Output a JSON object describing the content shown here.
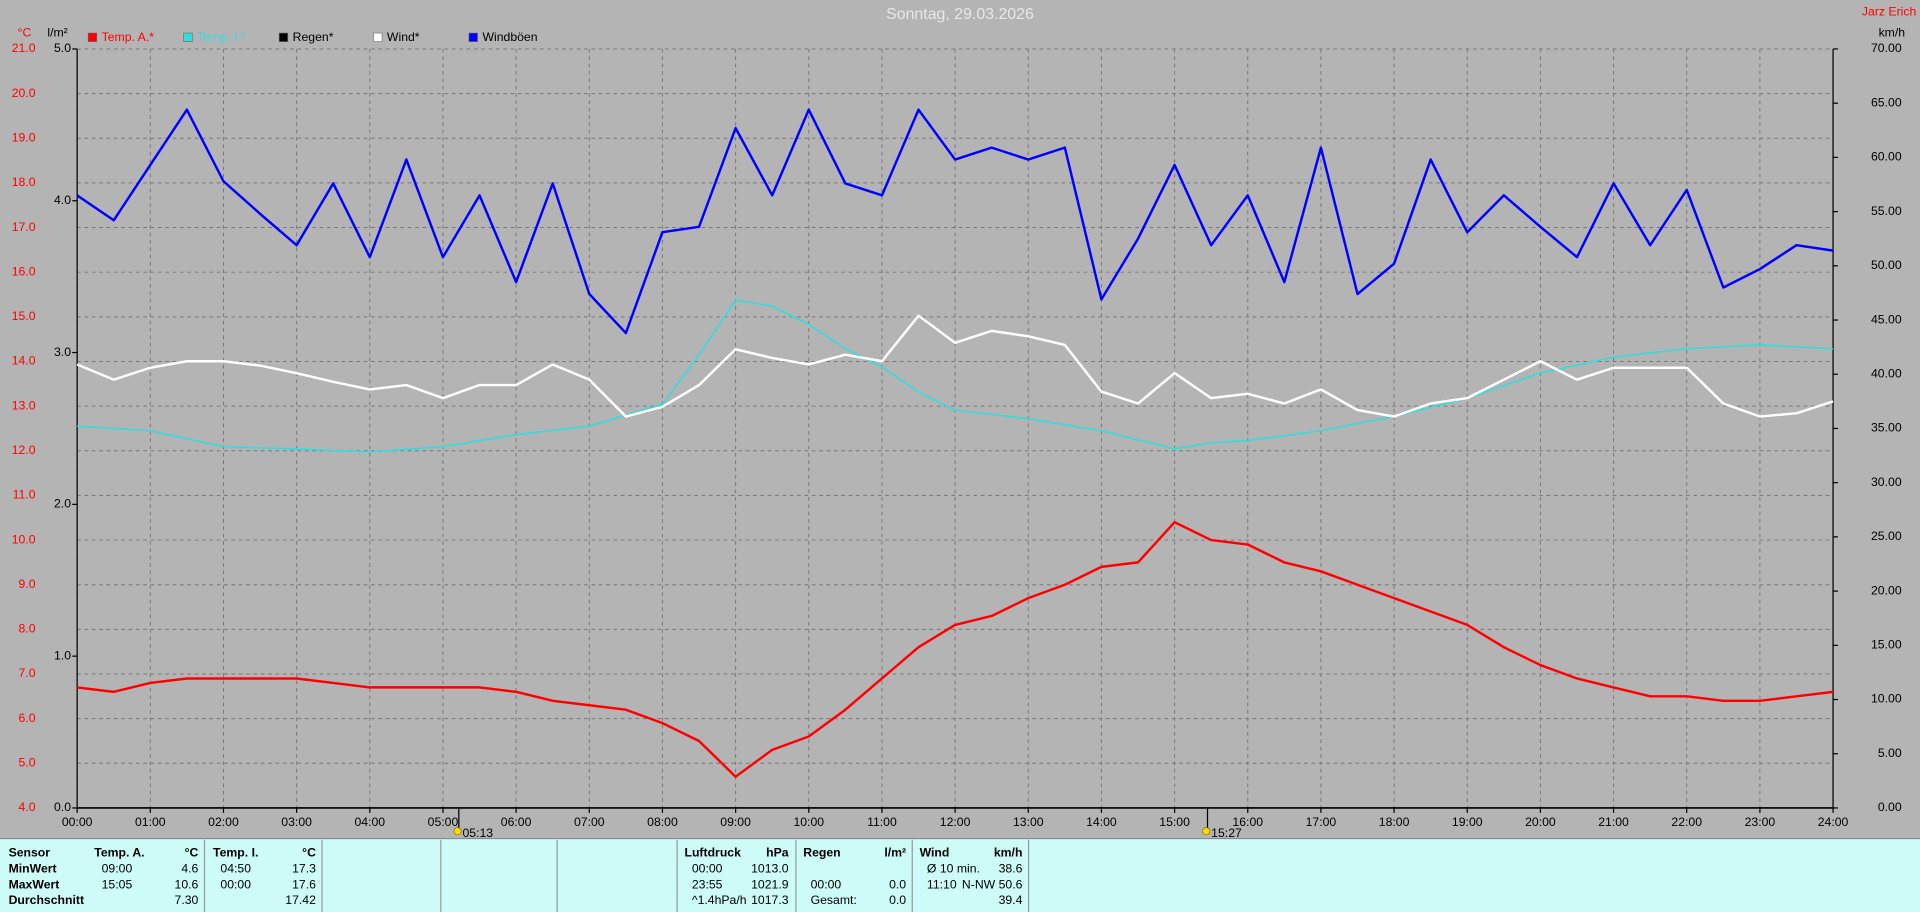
{
  "chart_data": {
    "type": "line",
    "title": "Sonntag, 29.03.2026",
    "author": "Jarz Erich",
    "y_unit": "°C",
    "y2_unit": "l/m²",
    "y3_unit": "km/h",
    "xlim": [
      0,
      24
    ],
    "xticks": [
      {
        "value": 0,
        "label": "00:00"
      },
      {
        "value": 1,
        "label": "01:00"
      },
      {
        "value": 2,
        "label": "02:00"
      },
      {
        "value": 3,
        "label": "03:00"
      },
      {
        "value": 4,
        "label": "04:00"
      },
      {
        "value": 5,
        "label": "05:00"
      },
      {
        "value": 6,
        "label": "06:00"
      },
      {
        "value": 7,
        "label": "07:00"
      },
      {
        "value": 8,
        "label": "08:00"
      },
      {
        "value": 9,
        "label": "09:00"
      },
      {
        "value": 10,
        "label": "10:00"
      },
      {
        "value": 11,
        "label": "11:00"
      },
      {
        "value": 12,
        "label": "12:00"
      },
      {
        "value": 13,
        "label": "13:00"
      },
      {
        "value": 14,
        "label": "14:00"
      },
      {
        "value": 15,
        "label": "15:00"
      },
      {
        "value": 16,
        "label": "16:00"
      },
      {
        "value": 17,
        "label": "17:00"
      },
      {
        "value": 18,
        "label": "18:00"
      },
      {
        "value": 19,
        "label": "19:00"
      },
      {
        "value": 20,
        "label": "20:00"
      },
      {
        "value": 21,
        "label": "21:00"
      },
      {
        "value": 22,
        "label": "22:00"
      },
      {
        "value": 23,
        "label": "23:00"
      },
      {
        "value": 24,
        "label": "24:00"
      }
    ],
    "ylim": [
      4,
      21
    ],
    "yticks": [
      {
        "value": 4,
        "label": "4.0"
      },
      {
        "value": 5,
        "label": "5.0"
      },
      {
        "value": 6,
        "label": "6.0"
      },
      {
        "value": 7,
        "label": "7.0"
      },
      {
        "value": 8,
        "label": "8.0"
      },
      {
        "value": 9,
        "label": "9.0"
      },
      {
        "value": 10,
        "label": "10.0"
      },
      {
        "value": 11,
        "label": "11.0"
      },
      {
        "value": 12,
        "label": "12.0"
      },
      {
        "value": 13,
        "label": "13.0"
      },
      {
        "value": 14,
        "label": "14.0"
      },
      {
        "value": 15,
        "label": "15.0"
      },
      {
        "value": 16,
        "label": "16.0"
      },
      {
        "value": 17,
        "label": "17.0"
      },
      {
        "value": 18,
        "label": "18.0"
      },
      {
        "value": 19,
        "label": "19.0"
      },
      {
        "value": 20,
        "label": "20.0"
      },
      {
        "value": 21,
        "label": "21.0"
      }
    ],
    "y2lim": [
      0,
      5
    ],
    "y2ticks": [
      {
        "value": 0,
        "label": "0.0"
      },
      {
        "value": 1,
        "label": "1.0"
      },
      {
        "value": 2,
        "label": "2.0"
      },
      {
        "value": 3,
        "label": "3.0"
      },
      {
        "value": 4,
        "label": "4.0"
      },
      {
        "value": 5,
        "label": "5.0"
      }
    ],
    "y3lim": [
      0,
      70
    ],
    "y3ticks": [
      {
        "value": 0,
        "label": "0.00"
      },
      {
        "value": 5,
        "label": "5.00"
      },
      {
        "value": 10,
        "label": "10.00"
      },
      {
        "value": 15,
        "label": "15.00"
      },
      {
        "value": 20,
        "label": "20.00"
      },
      {
        "value": 25,
        "label": "25.00"
      },
      {
        "value": 30,
        "label": "30.00"
      },
      {
        "value": 35,
        "label": "35.00"
      },
      {
        "value": 40,
        "label": "40.00"
      },
      {
        "value": 45,
        "label": "45.00"
      },
      {
        "value": 50,
        "label": "50.00"
      },
      {
        "value": 55,
        "label": "55.00"
      },
      {
        "value": 60,
        "label": "60.00"
      },
      {
        "value": 65,
        "label": "65.00"
      },
      {
        "value": 70,
        "label": "70.00"
      }
    ],
    "y4lim": [
      0,
      100
    ],
    "grid": true,
    "x": [
      0,
      0.5,
      1,
      1.5,
      2,
      2.5,
      3,
      3.5,
      4,
      4.5,
      5,
      5.5,
      6,
      6.5,
      7,
      7.5,
      8,
      8.5,
      9,
      9.5,
      10,
      10.5,
      11,
      11.5,
      12,
      12.5,
      13,
      13.5,
      14,
      14.5,
      15,
      15.5,
      16,
      16.5,
      17,
      17.5,
      18,
      18.5,
      19,
      19.5,
      20,
      20.5,
      21,
      21.5,
      22,
      22.5,
      23,
      23.5,
      24
    ],
    "series": [
      {
        "name": "Temp. A.*",
        "color": "#ff0000",
        "label_color": "#ff0000",
        "values": [
          6.7,
          6.6,
          6.8,
          6.9,
          6.9,
          6.9,
          6.9,
          6.8,
          6.7,
          6.7,
          6.7,
          6.7,
          6.6,
          6.4,
          6.3,
          6.2,
          5.9,
          5.5,
          4.7,
          5.3,
          5.6,
          6.2,
          6.9,
          7.6,
          8.1,
          8.3,
          8.7,
          9.0,
          9.4,
          9.5,
          10.4,
          10.0,
          9.9,
          9.5,
          9.3,
          9.0,
          8.7,
          8.4,
          8.1,
          7.6,
          7.2,
          6.9,
          6.7,
          6.5,
          6.5,
          6.4,
          6.4,
          6.5,
          6.6
        ]
      },
      {
        "name": "Temp. I.*",
        "color": "#33dddd",
        "label_color": "#33dddd",
        "axis": "y4",
        "x": [
          0,
          1,
          2,
          3,
          4,
          5,
          6,
          7,
          8,
          8.5,
          9,
          9.5,
          10,
          10.5,
          11,
          11.5,
          12,
          13,
          14,
          15,
          15.5,
          16,
          17,
          18,
          19,
          20,
          21,
          22,
          23,
          24
        ],
        "values": [
          50.3,
          49.7,
          47.6,
          47.3,
          46.9,
          47.6,
          49.2,
          50.3,
          53.2,
          59.7,
          66.9,
          66.1,
          63.7,
          60.5,
          58.1,
          54.8,
          52.4,
          51.3,
          49.7,
          47.3,
          48.1,
          48.4,
          49.7,
          51.6,
          54.0,
          57.3,
          59.4,
          60.5,
          61.0,
          60.5
        ]
      },
      {
        "name": "Regen*",
        "color": "#000000",
        "label_color": "#000000",
        "axis": "y2",
        "x": [
          0,
          24
        ],
        "values": [
          0,
          0
        ]
      },
      {
        "name": "Wind*",
        "color": "#ffffff",
        "label_color": "#000000",
        "axis": "y3",
        "values": [
          40.9,
          39.5,
          40.6,
          41.2,
          41.2,
          40.8,
          40.1,
          39.3,
          38.6,
          39.0,
          37.8,
          39.0,
          39.0,
          40.9,
          39.5,
          36.1,
          37.0,
          39.0,
          42.3,
          41.5,
          40.9,
          41.8,
          41.2,
          45.4,
          42.9,
          44.0,
          43.5,
          42.7,
          38.4,
          37.3,
          40.1,
          37.8,
          38.2,
          37.3,
          38.6,
          36.7,
          36.1,
          37.3,
          37.8,
          39.5,
          41.2,
          39.5,
          40.6,
          40.6,
          40.6,
          37.3,
          36.1,
          36.4,
          37.5
        ]
      },
      {
        "name": "Windböen",
        "color": "#0000ff",
        "label_color": "#000000",
        "axis": "y3",
        "values": [
          56.5,
          54.2,
          59.3,
          64.4,
          57.8,
          54.8,
          51.9,
          57.6,
          50.8,
          59.8,
          50.8,
          56.5,
          48.5,
          57.6,
          47.4,
          43.8,
          53.1,
          53.6,
          62.7,
          56.5,
          64.4,
          57.6,
          56.5,
          64.4,
          59.8,
          60.9,
          59.8,
          60.9,
          46.9,
          52.5,
          59.3,
          51.9,
          56.5,
          48.5,
          60.9,
          47.4,
          50.2,
          59.8,
          53.1,
          56.5,
          53.6,
          50.8,
          57.6,
          51.9,
          57.0,
          48.0,
          49.7,
          51.9,
          51.4
        ]
      }
    ],
    "annotations": [
      {
        "x": 5.2167,
        "label": "05:13"
      },
      {
        "x": 15.45,
        "label": "15:27"
      }
    ]
  },
  "stats": {
    "row_labels": [
      "Sensor",
      "MinWert",
      "MaxWert",
      "Durchschnitt"
    ],
    "columns": [
      {
        "title": "Temp. A.",
        "unit": "°C",
        "rows": [
          {
            "time": "09:00",
            "value": "4.6"
          },
          {
            "time": "15:05",
            "value": "10.6"
          },
          {
            "value": "7.30"
          }
        ]
      },
      {
        "title": "Temp. I.",
        "unit": "°C",
        "rows": [
          {
            "time": "04:50",
            "value": "17.3"
          },
          {
            "time": "00:00",
            "value": "17.6"
          },
          {
            "value": "17.42"
          }
        ]
      },
      {
        "title": "Luftdruck",
        "unit": "hPa",
        "rows": [
          {
            "time": "00:00",
            "value": "1013.0"
          },
          {
            "time": "23:55",
            "value": "1021.9"
          },
          {
            "time": "^1.4hPa/h",
            "value": "1017.3"
          }
        ]
      },
      {
        "title": "Regen",
        "unit": "l/m²",
        "rows": [
          null,
          {
            "time": "00:00",
            "value": "0.0"
          },
          {
            "time": "Gesamt:",
            "value": "0.0"
          }
        ]
      },
      {
        "title": "Wind",
        "unit": "km/h",
        "rows": [
          {
            "time": "Ø 10 min.",
            "value": "38.6"
          },
          {
            "time": "11:10",
            "value": "N-NW 50.6"
          },
          {
            "value": "39.4"
          }
        ]
      }
    ]
  }
}
